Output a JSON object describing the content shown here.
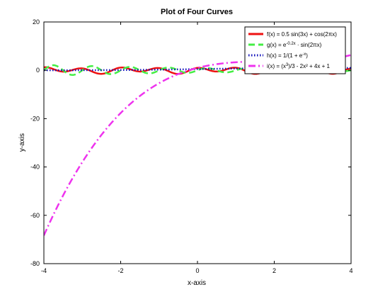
{
  "chart_data": {
    "type": "line",
    "title": "Plot of Four Curves",
    "xlabel": "x-axis",
    "ylabel": "y-axis",
    "xlim": [
      -4,
      4
    ],
    "ylim": [
      -80,
      20
    ],
    "xticks": [
      -4,
      -2,
      0,
      2,
      4
    ],
    "yticks": [
      -80,
      -60,
      -40,
      -20,
      0,
      20
    ],
    "xtick_labels": [
      "-4",
      "-2",
      "0",
      "2",
      "4"
    ],
    "ytick_labels": [
      "-80",
      "-60",
      "-40",
      "-20",
      "0",
      "20"
    ],
    "grid": false,
    "legend_position": "top-right",
    "series": [
      {
        "name": "f(x) = 0.5 sin(3x) + cos(2πx)",
        "color": "#ee1111",
        "style": "solid",
        "formula": "0.5*sin(3x)+cos(2*pi*x)"
      },
      {
        "name": "g(x) = e^(-0.2x) · sin(2πx)",
        "color": "#44ee44",
        "style": "dashed",
        "formula": "exp(-0.2x)*sin(2*pi*x)"
      },
      {
        "name": "h(x) = 1/(1 + e^(-x))",
        "color": "#1111bb",
        "style": "dotted",
        "formula": "1/(1+exp(-x))"
      },
      {
        "name": "i(x) = (x^3)/3 - 2x^2 + 4x + 1",
        "color": "#ee33ee",
        "style": "dashdot",
        "formula": "x^3/3-2x^2+4x+1"
      }
    ],
    "legend": {
      "entries": [
        {
          "pre": "f(x) = 0.5 sin(3x) + cos(2πx)",
          "sup": "",
          "post": ""
        },
        {
          "pre": "g(x) = e",
          "sup": "-0.2x",
          "post": " · sin(2πx)"
        },
        {
          "pre": "h(x) = 1/(1 + e",
          "sup": "-x",
          "post": ")"
        },
        {
          "pre": "i(x) = (x",
          "sup": "3",
          "post": ")/3 - 2x² + 4x + 1"
        }
      ]
    }
  }
}
